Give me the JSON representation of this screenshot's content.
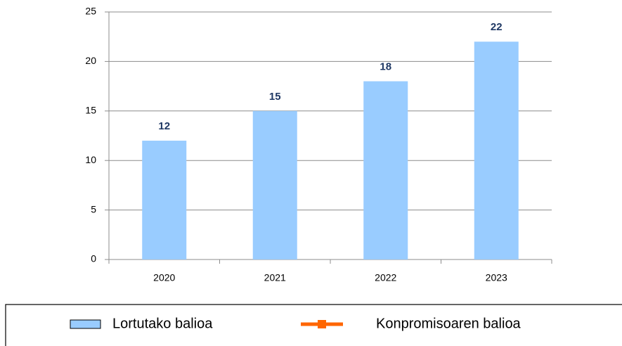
{
  "chart_data": {
    "type": "bar",
    "categories": [
      "2020",
      "2021",
      "2022",
      "2023"
    ],
    "series": [
      {
        "name": "Lortutako balioa",
        "color": "#99ccff",
        "values": [
          12,
          15,
          18,
          22
        ]
      },
      {
        "name": "Konpromisoaren balioa",
        "color": "#ff6600",
        "values": [
          null,
          null,
          null,
          null
        ]
      }
    ],
    "ylim": [
      0,
      25
    ],
    "yticks": [
      0,
      5,
      10,
      15,
      20,
      25
    ],
    "grid": true,
    "legend": "bottom"
  }
}
